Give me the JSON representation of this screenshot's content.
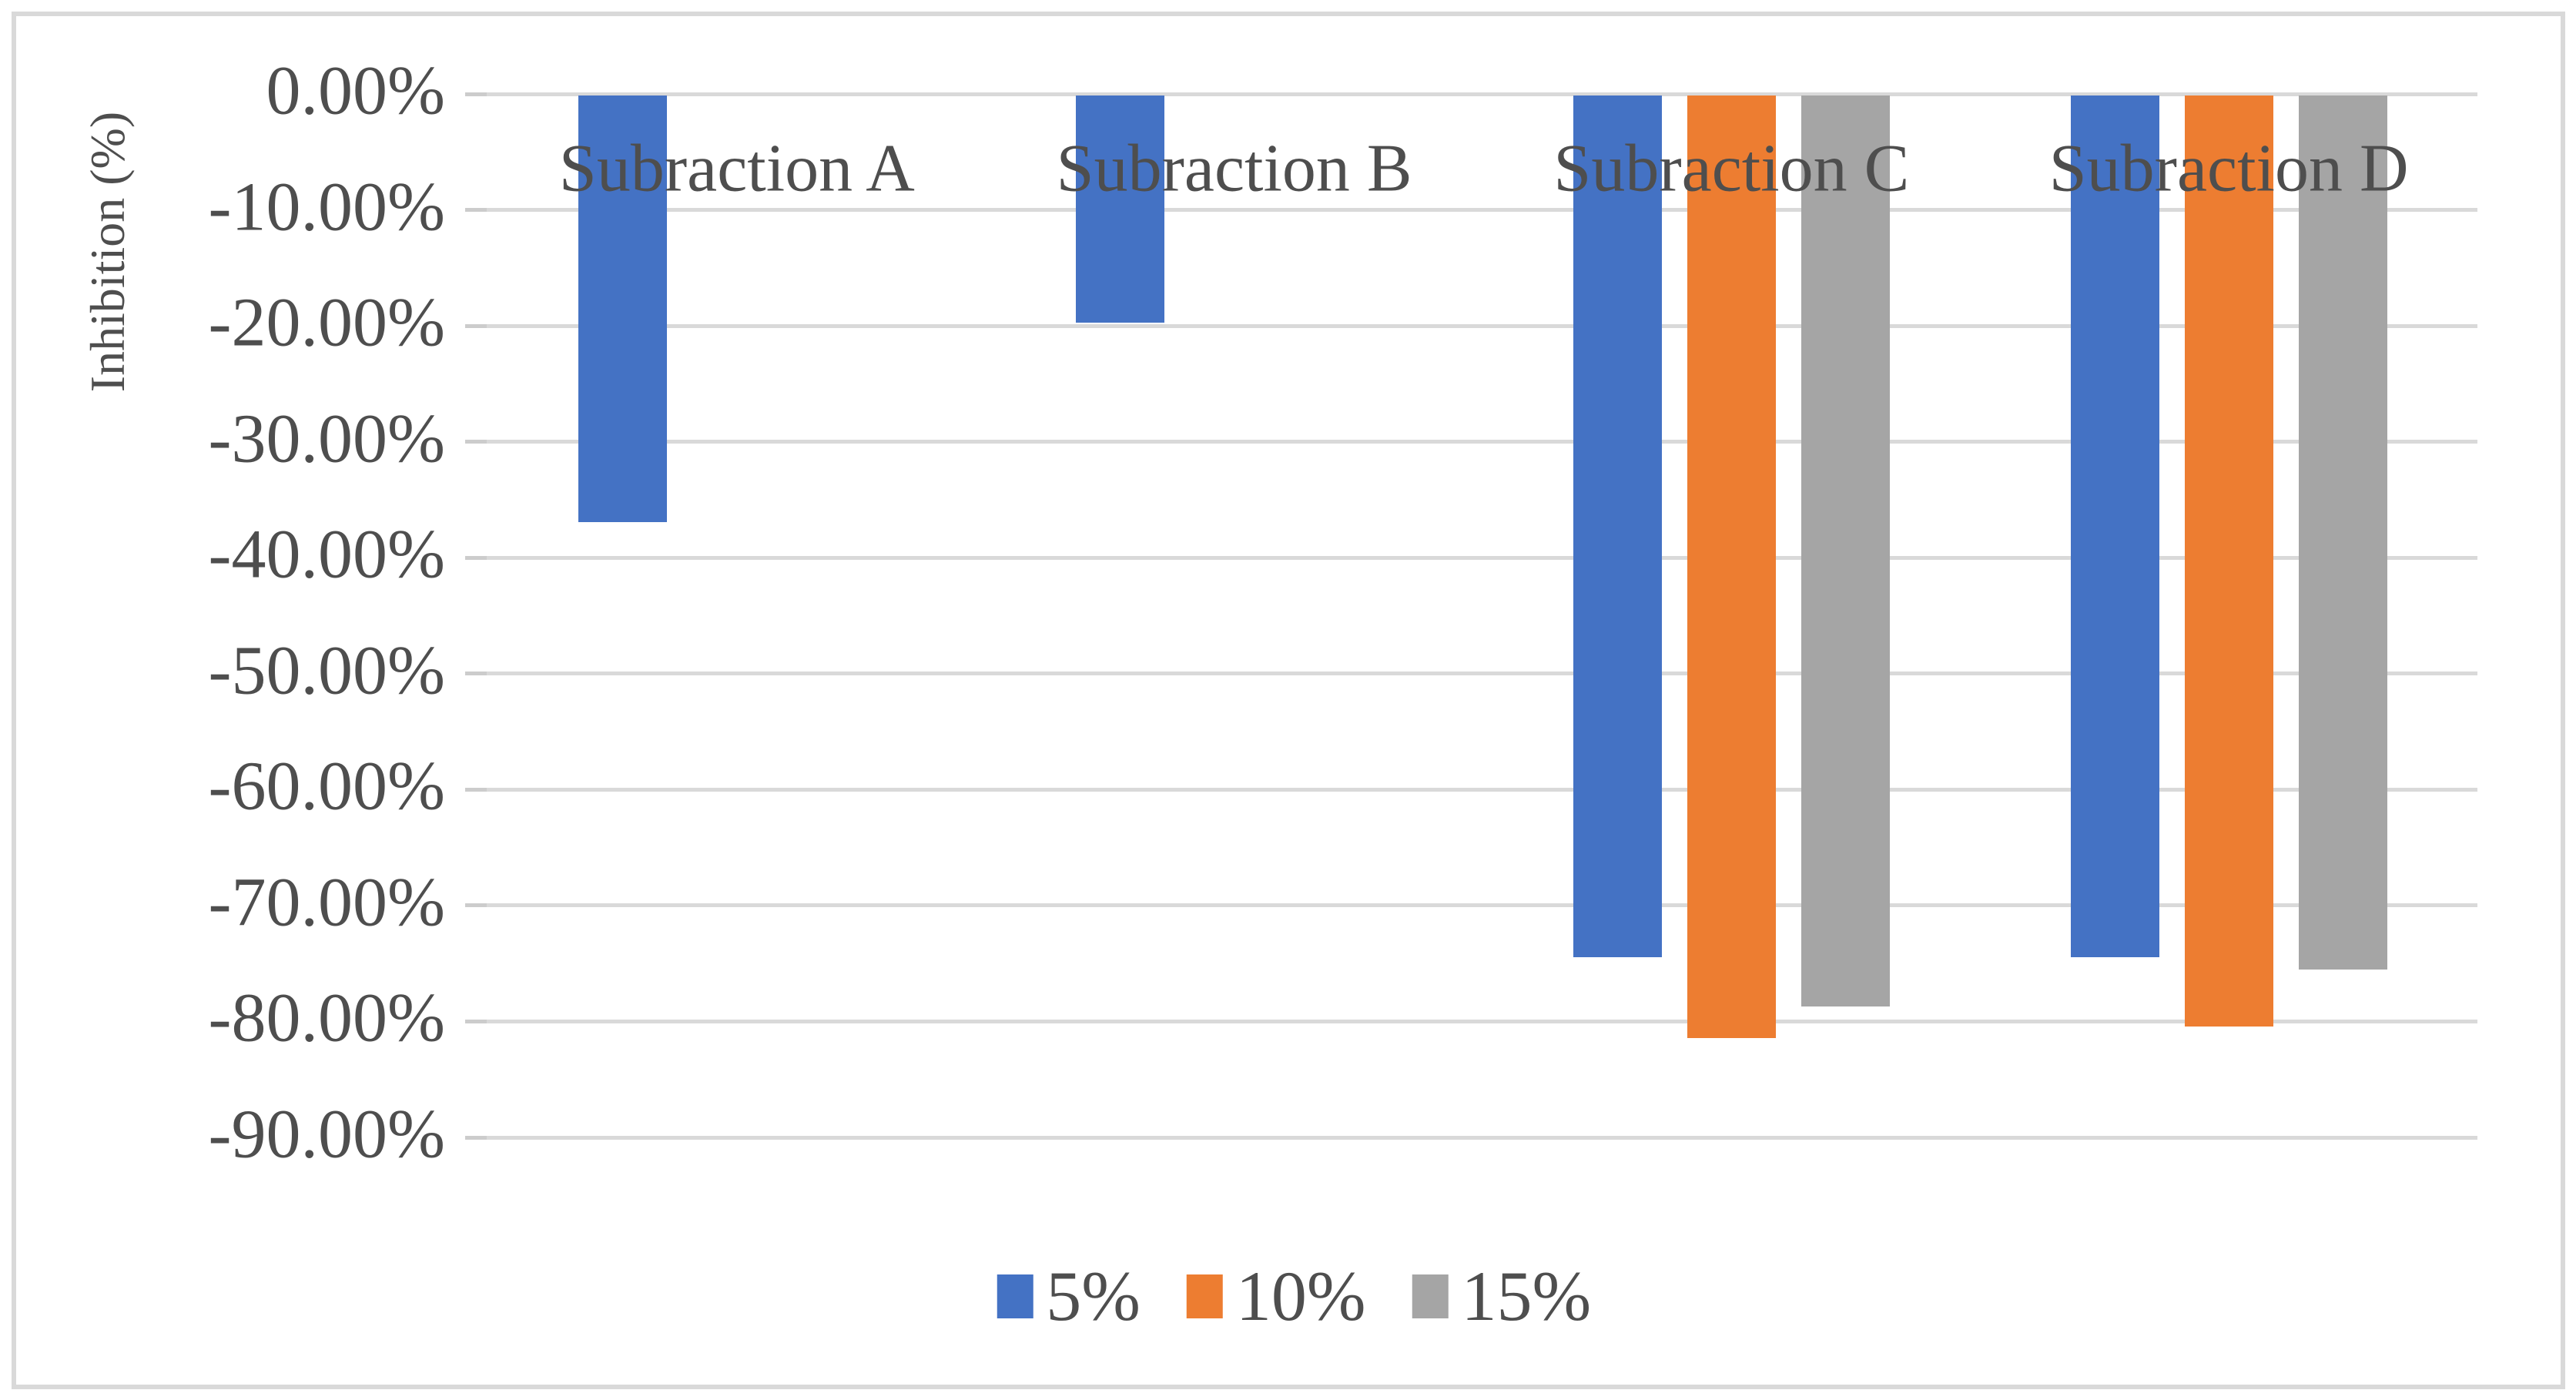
{
  "chart_data": {
    "type": "bar",
    "orientation": "vertical",
    "title": "",
    "xlabel": "",
    "ylabel": "Inhibition (%)",
    "ylim": [
      -90,
      0
    ],
    "grid": true,
    "legend_position": "bottom",
    "gridline_color": "#d9d9d9",
    "text_color": "#4e4e4e",
    "categories": [
      "Subraction A",
      "Subraction B",
      "Subraction C",
      "Subraction D"
    ],
    "series": [
      {
        "name": "5%",
        "color": "#4472C4",
        "values": [
          -36.8,
          -19.6,
          -74.3,
          -74.3
        ]
      },
      {
        "name": "10%",
        "color": "#ED7D31",
        "values": [
          0,
          0,
          -81.3,
          -80.3
        ]
      },
      {
        "name": "15%",
        "color": "#A5A5A5",
        "values": [
          0,
          0,
          -78.6,
          -75.4
        ]
      }
    ],
    "y_ticks": [
      {
        "value": 0,
        "label": "0.00%"
      },
      {
        "value": -10,
        "label": "-10.00%"
      },
      {
        "value": -20,
        "label": "-20.00%"
      },
      {
        "value": -30,
        "label": "-30.00%"
      },
      {
        "value": -40,
        "label": "-40.00%"
      },
      {
        "value": -50,
        "label": "-50.00%"
      },
      {
        "value": -60,
        "label": "-60.00%"
      },
      {
        "value": -70,
        "label": "-70.00%"
      },
      {
        "value": -80,
        "label": "-80.00%"
      },
      {
        "value": -90,
        "label": "-90.00%"
      }
    ]
  }
}
